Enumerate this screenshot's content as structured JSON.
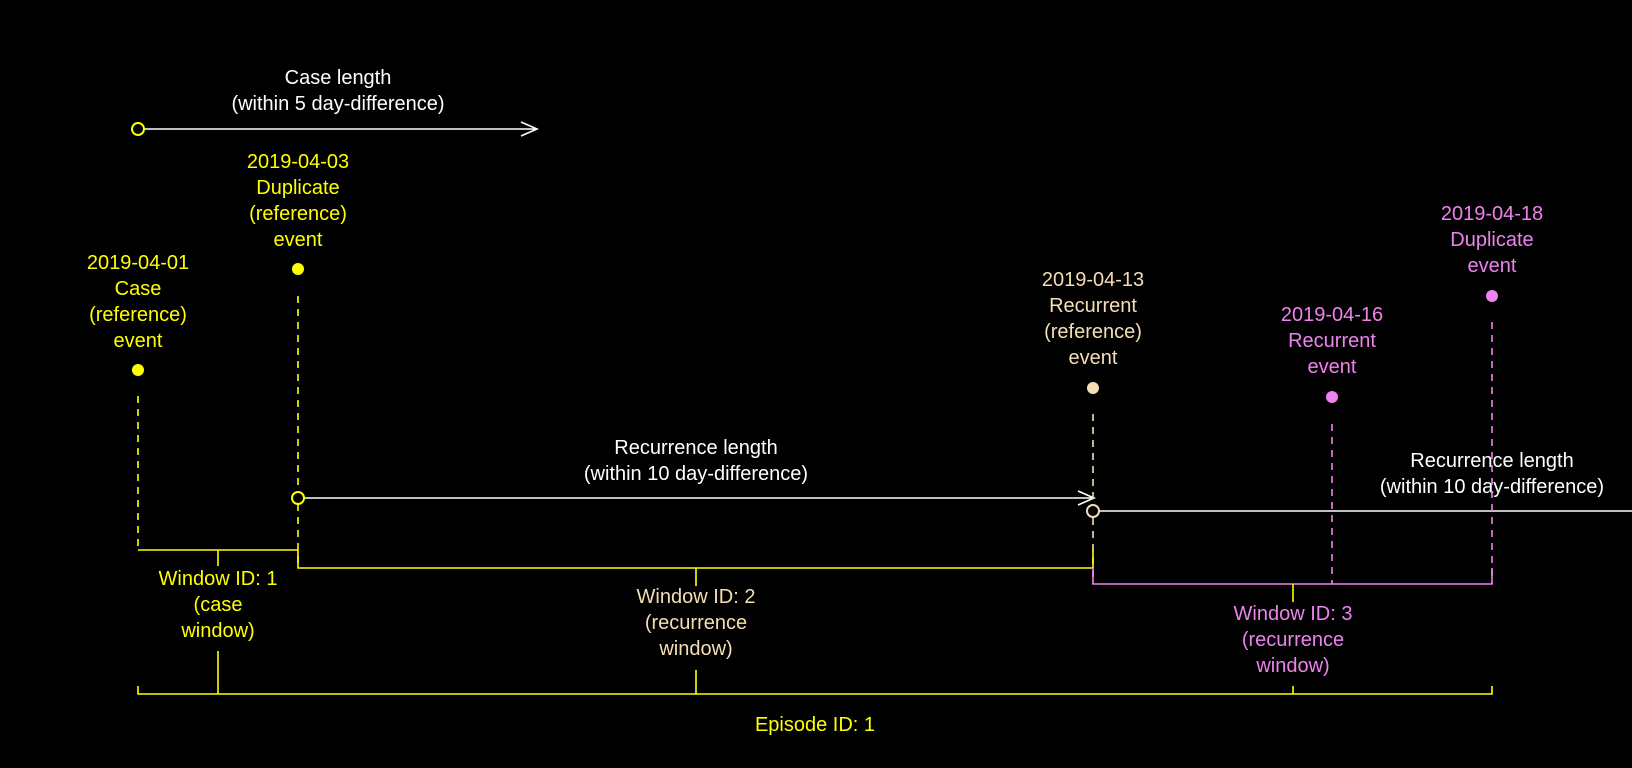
{
  "colors": {
    "background": "#000000",
    "white": "#ffffff",
    "yellow": "#ffff00",
    "peach": "#f5deb3",
    "violet": "#ee82ee"
  },
  "case_length": {
    "line1": "Case length",
    "line2": "(within 5 day-difference)"
  },
  "recurrence_length_1": {
    "line1": "Recurrence length",
    "line2": "(within 10 day-difference)"
  },
  "recurrence_length_2": {
    "line1": "Recurrence length",
    "line2": "(within 10 day-difference)"
  },
  "events": [
    {
      "date": "2019-04-01",
      "lines": [
        "Case",
        "(reference)",
        "event"
      ]
    },
    {
      "date": "2019-04-03",
      "lines": [
        "Duplicate",
        "(reference)",
        "event"
      ]
    },
    {
      "date": "2019-04-13",
      "lines": [
        "Recurrent",
        "(reference)",
        "event"
      ]
    },
    {
      "date": "2019-04-16",
      "lines": [
        "Recurrent",
        "event"
      ]
    },
    {
      "date": "2019-04-18",
      "lines": [
        "Duplicate",
        "event"
      ]
    }
  ],
  "windows": [
    {
      "lines": [
        "Window ID: 1",
        "(case",
        "window)"
      ]
    },
    {
      "lines": [
        "Window ID: 2",
        "(recurrence",
        "window)"
      ]
    },
    {
      "lines": [
        "Window ID: 3",
        "(recurrence",
        "window)"
      ]
    }
  ],
  "episode": {
    "label": "Episode ID: 1"
  }
}
